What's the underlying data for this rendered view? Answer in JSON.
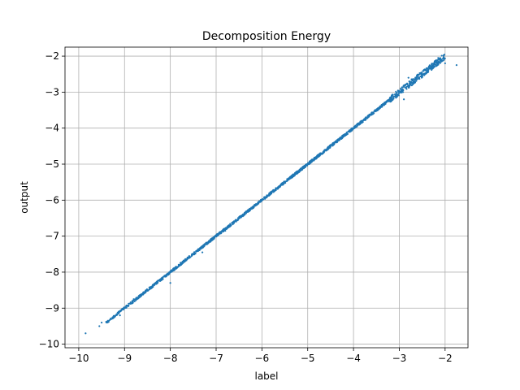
{
  "chart_data": {
    "type": "scatter",
    "title": "Decomposition Energy",
    "xlabel": "label",
    "ylabel": "output",
    "xlim": [
      -10.3,
      -1.5
    ],
    "ylim": [
      -10.1,
      -1.75
    ],
    "xticks": [
      -10,
      -9,
      -8,
      -7,
      -6,
      -5,
      -4,
      -3,
      -2
    ],
    "yticks": [
      -10,
      -9,
      -8,
      -7,
      -6,
      -5,
      -4,
      -3,
      -2
    ],
    "xtick_labels": [
      "−10",
      "−9",
      "−8",
      "−7",
      "−6",
      "−5",
      "−4",
      "−3",
      "−2"
    ],
    "ytick_labels": [
      "−10",
      "−9",
      "−8",
      "−7",
      "−6",
      "−5",
      "−4",
      "−3",
      "−2"
    ],
    "grid": true,
    "marker_color": "#1f77b4",
    "series": [
      {
        "trend": "points lie tightly along y = x",
        "x_range": [
          -9.85,
          -1.75
        ],
        "y_range": [
          -9.7,
          -2.05
        ],
        "points": [
          [
            -9.85,
            -9.7
          ],
          [
            -9.55,
            -9.5
          ],
          [
            -9.5,
            -9.4
          ],
          [
            -9.4,
            -9.38
          ],
          [
            -9.1,
            -9.2
          ],
          [
            -9.0,
            -9.0
          ],
          [
            -8.8,
            -8.75
          ],
          [
            -8.5,
            -8.5
          ],
          [
            -8.2,
            -8.2
          ],
          [
            -8.0,
            -8.3
          ],
          [
            -7.8,
            -7.8
          ],
          [
            -7.5,
            -7.5
          ],
          [
            -7.2,
            -7.2
          ],
          [
            -7.0,
            -7.0
          ],
          [
            -6.8,
            -6.85
          ],
          [
            -6.5,
            -6.5
          ],
          [
            -6.2,
            -6.2
          ],
          [
            -6.0,
            -6.0
          ],
          [
            -5.8,
            -5.8
          ],
          [
            -5.5,
            -5.5
          ],
          [
            -5.2,
            -5.2
          ],
          [
            -5.0,
            -5.0
          ],
          [
            -4.8,
            -4.8
          ],
          [
            -4.5,
            -4.5
          ],
          [
            -4.2,
            -4.2
          ],
          [
            -4.0,
            -4.0
          ],
          [
            -3.8,
            -3.8
          ],
          [
            -3.5,
            -3.5
          ],
          [
            -3.2,
            -3.15
          ],
          [
            -3.0,
            -3.0
          ],
          [
            -2.8,
            -2.85
          ],
          [
            -2.5,
            -2.5
          ],
          [
            -2.3,
            -2.3
          ],
          [
            -2.1,
            -2.1
          ],
          [
            -1.75,
            -2.25
          ],
          [
            -2.15,
            -2.05
          ],
          [
            -2.0,
            -2.2
          ],
          [
            -2.8,
            -2.6
          ],
          [
            -2.9,
            -3.2
          ],
          [
            -7.3,
            -7.45
          ]
        ]
      }
    ]
  }
}
